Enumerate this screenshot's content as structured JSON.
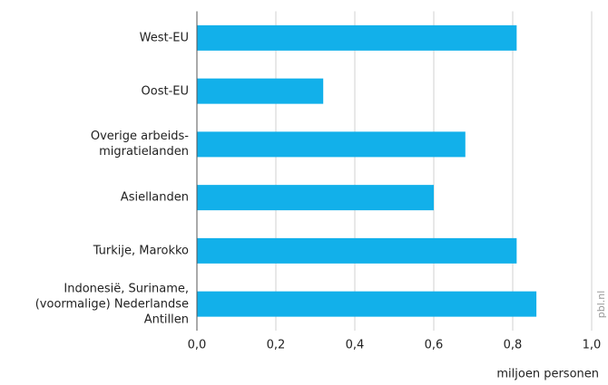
{
  "chart_data": {
    "type": "barh",
    "categories": [
      "West-EU",
      "Oost-EU",
      "Overige arbeids-\nmigratielanden",
      "Asiellanden",
      "Turkije, Marokko",
      "Indonesië, Suriname,\n(voormalige) Nederlandse\nAntillen"
    ],
    "values": [
      0.81,
      0.32,
      0.68,
      0.6,
      0.81,
      0.86
    ],
    "color": "#12b0ea",
    "xlim": [
      0,
      1.0
    ],
    "xticks": [
      {
        "value": 0,
        "label": "0,0"
      },
      {
        "value": 0.2,
        "label": "0,2"
      },
      {
        "value": 0.4,
        "label": "0,4"
      },
      {
        "value": 0.6,
        "label": "0,6"
      },
      {
        "value": 0.8,
        "label": "0,8"
      },
      {
        "value": 1.0,
        "label": "1,0"
      }
    ],
    "xlabel": "miljoen personen",
    "source": "pbl.nl",
    "grid": true
  }
}
